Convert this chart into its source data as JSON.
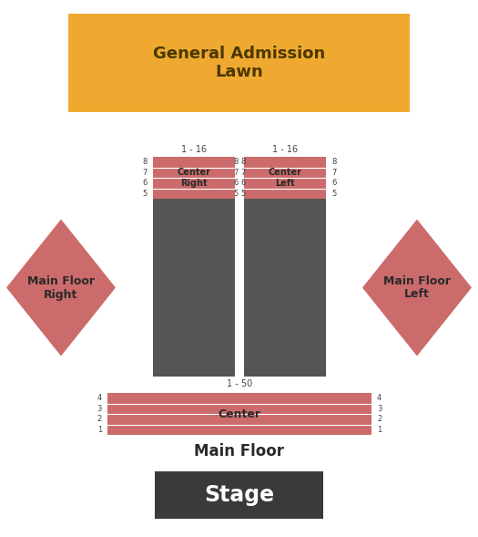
{
  "bg_color": "#ffffff",
  "fig_w": 5.25,
  "fig_h": 5.89,
  "dpi": 100,
  "lawn_color": "#f0a930",
  "lawn_label": "General Admission\nLawn",
  "lawn_label_fontsize": 13,
  "lawn_label_fontweight": "bold",
  "lawn_label_color": "#4a3800",
  "upper_section_color": "#cc6b6b",
  "dark_color": "#555555",
  "pink_color": "#cc6b6b",
  "line_color": "#ffffff",
  "stage_color": "#3a3a3a",
  "stage_label": "Stage",
  "stage_label_color": "#ffffff",
  "stage_label_fontsize": 17,
  "stage_label_fontweight": "bold",
  "main_floor_label": "Main Floor",
  "main_floor_fontsize": 12,
  "main_floor_fontweight": "bold",
  "main_floor_color": "#2a2a2a",
  "center_label": "Center",
  "center_right_label": "Center\nRight",
  "center_left_label": "Center\nLeft",
  "diamond_color": "#cc6b6b",
  "diamond_left_label": "Main Floor\nRight",
  "diamond_right_label": "Main Floor\nLeft",
  "diamond_label_fontsize": 9,
  "diamond_label_fontweight": "bold",
  "diamond_label_color": "#2a2a2a"
}
